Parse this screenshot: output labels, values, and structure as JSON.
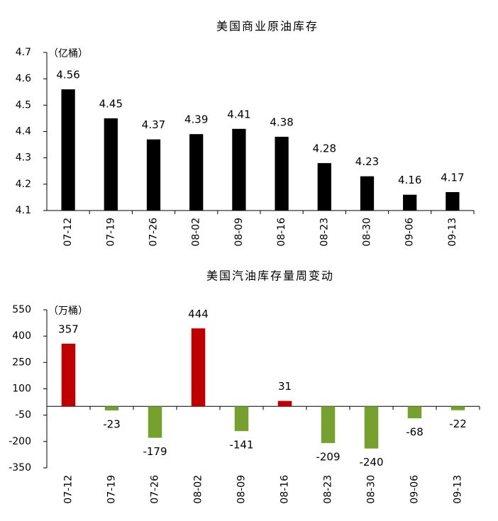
{
  "chart_data": [
    {
      "type": "bar",
      "title": "美国商业原油库存",
      "unit_label": "（亿桶）",
      "categories": [
        "07-12",
        "07-19",
        "07-26",
        "08-02",
        "08-09",
        "08-16",
        "08-23",
        "08-30",
        "09-06",
        "09-13"
      ],
      "values": [
        4.56,
        4.45,
        4.37,
        4.39,
        4.41,
        4.38,
        4.28,
        4.23,
        4.16,
        4.17
      ],
      "colors": [
        "#000000",
        "#000000",
        "#000000",
        "#000000",
        "#000000",
        "#000000",
        "#000000",
        "#000000",
        "#000000",
        "#000000"
      ],
      "ylim": [
        4.1,
        4.7
      ],
      "yticks": [
        4.1,
        4.2,
        4.3,
        4.4,
        4.5,
        4.6,
        4.7
      ]
    },
    {
      "type": "bar",
      "title": "美国汽油库存量周变动",
      "unit_label": "（万桶）",
      "categories": [
        "07-12",
        "07-19",
        "07-26",
        "08-02",
        "08-09",
        "08-16",
        "08-23",
        "08-30",
        "09-06",
        "09-13"
      ],
      "values": [
        357,
        -23,
        -179,
        444,
        -141,
        31,
        -209,
        -240,
        -68,
        -22
      ],
      "colors": [
        "#c00000",
        "#77a12e",
        "#77a12e",
        "#c00000",
        "#77a12e",
        "#c00000",
        "#77a12e",
        "#77a12e",
        "#77a12e",
        "#77a12e"
      ],
      "ylim": [
        -350,
        550
      ],
      "yticks": [
        -350,
        -200,
        -50,
        100,
        250,
        400,
        550
      ]
    }
  ]
}
